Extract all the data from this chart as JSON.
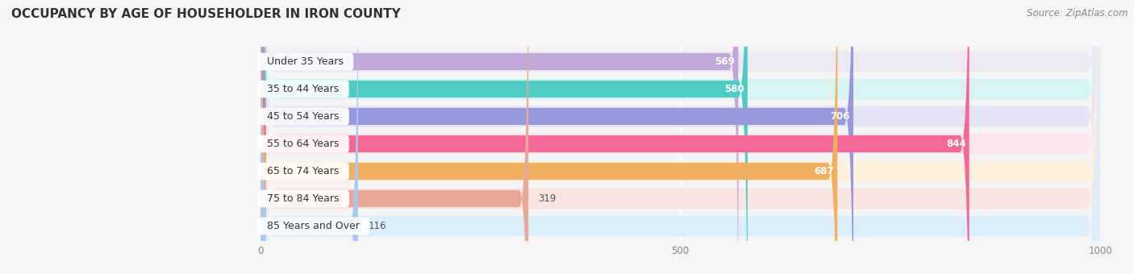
{
  "title": "OCCUPANCY BY AGE OF HOUSEHOLDER IN IRON COUNTY",
  "source": "Source: ZipAtlas.com",
  "categories": [
    "Under 35 Years",
    "35 to 44 Years",
    "45 to 54 Years",
    "55 to 64 Years",
    "65 to 74 Years",
    "75 to 84 Years",
    "85 Years and Over"
  ],
  "values": [
    569,
    580,
    706,
    844,
    687,
    319,
    116
  ],
  "bar_colors": [
    "#c0a8d8",
    "#4ecbc4",
    "#9898dc",
    "#f46898",
    "#f0b060",
    "#e8a898",
    "#a8c8f0"
  ],
  "bar_bg_colors": [
    "#ece8f4",
    "#d8f4f2",
    "#e4e4f4",
    "#fde4ee",
    "#fef0dc",
    "#f8e4e0",
    "#dceefa"
  ],
  "xlim_data": 1000,
  "xlim_left": -155,
  "xticks": [
    0,
    500,
    1000
  ],
  "value_label_color_inside": [
    "white",
    "white",
    "white",
    "white",
    "white",
    "black",
    "black"
  ],
  "title_fontsize": 11,
  "source_fontsize": 8.5,
  "bar_label_fontsize": 9,
  "value_fontsize": 8.5,
  "bg_color": "#f5f5f5",
  "bar_gap_color": "#ffffff"
}
